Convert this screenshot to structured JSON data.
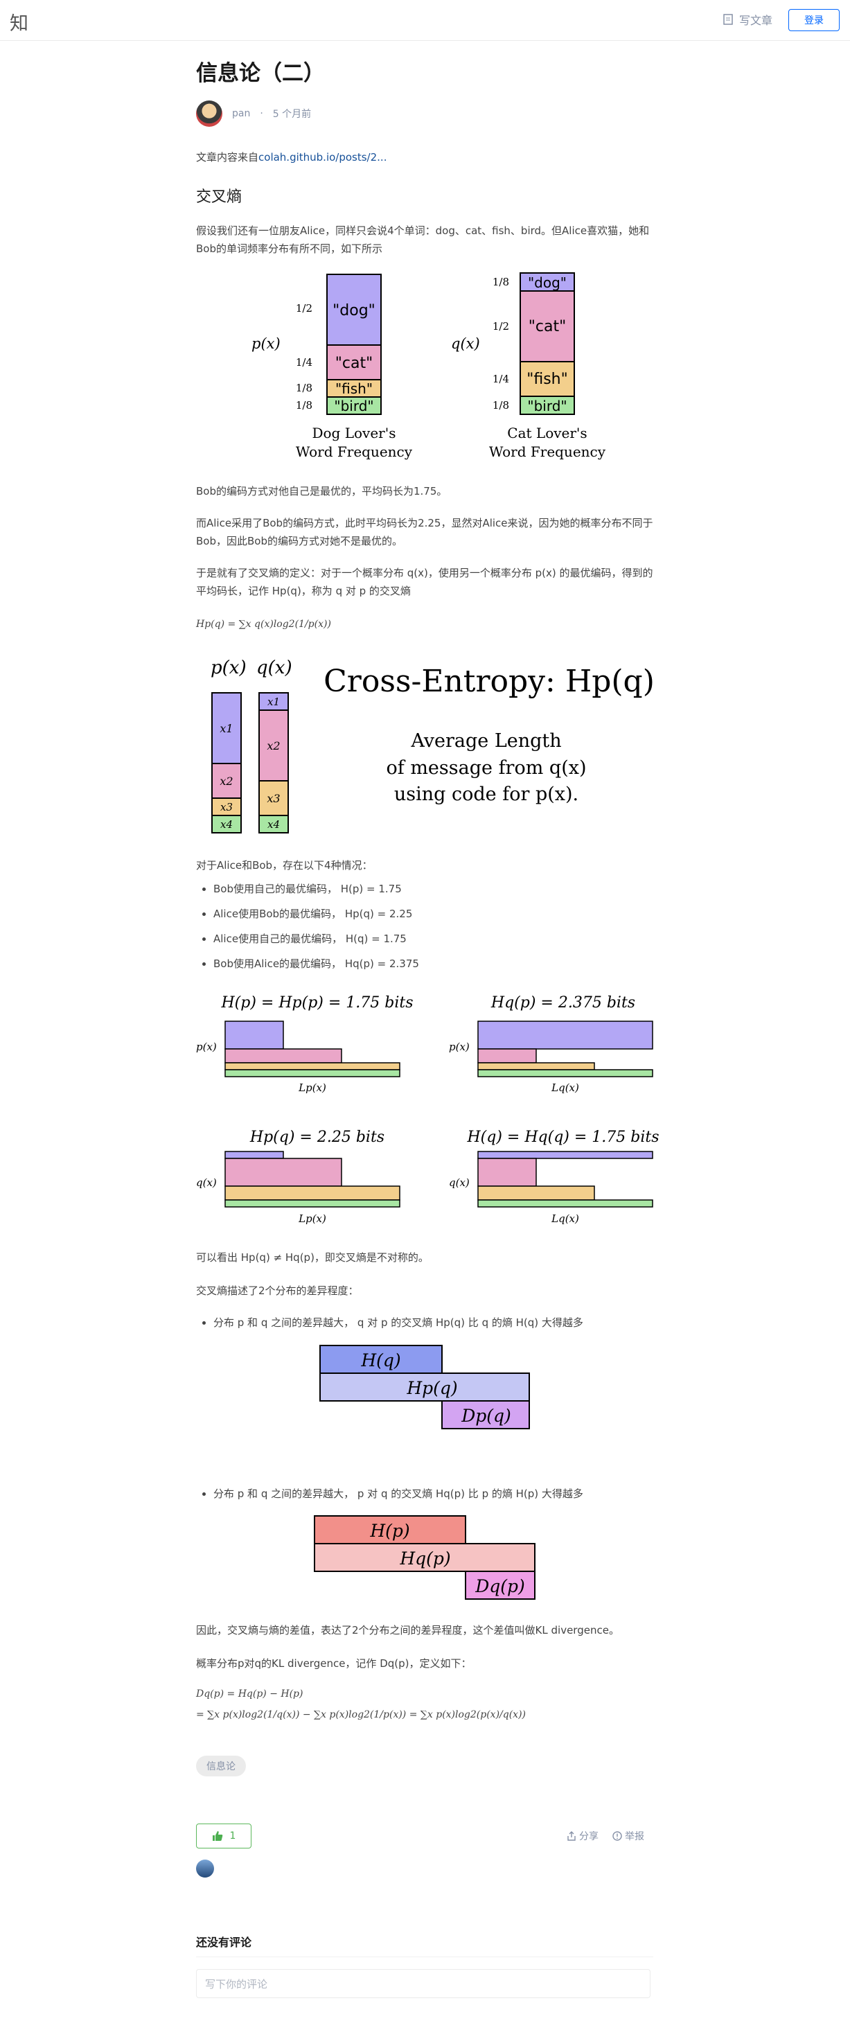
{
  "header": {
    "logo": "知",
    "write_label": "写文章",
    "login_label": "登录"
  },
  "article": {
    "title": "信息论（二）",
    "author": "pan",
    "time": "5 个月前",
    "source_prefix": "文章内容来自",
    "source_link": "colah.github.io/posts/2...",
    "section": "交叉熵",
    "p1": "假设我们还有一位朋友Alice，同样只会说4个单词：dog、cat、fish、bird。但Alice喜欢猫，她和Bob的单词频率分布有所不同，如下所示",
    "p2": "Bob的编码方式对他自己是最优的，平均码长为1.75。",
    "p3": "而Alice采用了Bob的编码方式，此时平均码长为2.25，显然对Alice来说，因为她的概率分布不同于Bob，因此Bob的编码方式对她不是最优的。",
    "p4": "于是就有了交叉熵的定义：对于一个概率分布 q(x)，使用另一个概率分布 p(x) 的最优编码，得到的平均码长，记作 Hp(q)，称为 q 对 p 的交叉熵",
    "formula1": "Hp(q) = ∑x q(x)log2(1/p(x))",
    "p5": "对于Alice和Bob，存在以下4种情况：",
    "cases": [
      "Bob使用自己的最优编码， H(p) = 1.75",
      "Alice使用Bob的最优编码， Hp(q) = 2.25",
      "Alice使用自己的最优编码， H(q) = 1.75",
      "Bob使用Alice的最优编码， Hq(p) = 2.375"
    ],
    "p6": "可以看出 Hp(q) ≠ Hq(p)，即交叉熵是不对称的。",
    "p7": "交叉熵描述了2个分布的差异程度：",
    "bullet_a": "分布 p 和 q 之间的差异越大， q 对 p 的交叉熵 Hp(q) 比 q 的熵 H(q) 大得越多",
    "bullet_b": "分布 p 和 q 之间的差异越大， p 对 q 的交叉熵 Hq(p) 比 p 的熵 H(p) 大得越多",
    "p8": "因此，交叉熵与熵的差值，表达了2个分布之间的差异程度，这个差值叫做KL divergence。",
    "p9": "概率分布p对q的KL divergence，记作 Dq(p)，定义如下：",
    "formula2a": "Dq(p) = Hq(p) − H(p)",
    "formula2b": "= ∑x p(x)log2(1/q(x)) − ∑x p(x)log2(1/p(x)) = ∑x p(x)log2(p(x)/q(x))",
    "tag": "信息论"
  },
  "fig1": {
    "p_label": "p(x)",
    "q_label": "q(x)",
    "words": [
      "\"dog\"",
      "\"cat\"",
      "\"fish\"",
      "\"bird\""
    ],
    "p_probs": [
      "1/2",
      "1/4",
      "1/8",
      "1/8"
    ],
    "q_probs": [
      "1/8",
      "1/2",
      "1/4",
      "1/8"
    ],
    "p_caption1": "Dog Lover's",
    "p_caption2": "Word Frequency",
    "q_caption1": "Cat Lover's",
    "q_caption2": "Word Frequency"
  },
  "fig2": {
    "px": "p(x)",
    "qx": "q(x)",
    "p_cells": [
      "x1",
      "x2",
      "x3",
      "x4"
    ],
    "title": "Cross-Entropy: Hp(q)",
    "sub1": "Average Length",
    "sub2": "of message from q(x)",
    "sub3": "using code for p(x)."
  },
  "fig3": {
    "t1": "H(p) = Hp(p) = 1.75 bits",
    "t2": "Hq(p) = 2.375 bits",
    "t3": "Hp(q) = 2.25 bits",
    "t4": "H(q) = Hq(q) = 1.75 bits",
    "px": "p(x)",
    "qx": "q(x)",
    "lp": "Lp(x)",
    "lq": "Lq(x)"
  },
  "fig4": {
    "hq": "H(q)",
    "hpq": "Hp(q)",
    "dpq": "Dp(q)"
  },
  "fig5": {
    "hp": "H(p)",
    "hqp": "Hq(p)",
    "dqp": "Dq(p)"
  },
  "footer": {
    "likes": "1",
    "share": "分享",
    "report": "举报",
    "comments_title": "还没有评论",
    "comment_placeholder": "写下你的评论"
  },
  "colors": {
    "purple": "#b3a7f5",
    "pink": "#eaa6c8",
    "orange": "#f3cf8c",
    "green": "#a8e6a3",
    "blue": "#8c9bf0",
    "lightblue": "#c4c7f4",
    "violet": "#d3a4f2",
    "red": "#f2908a",
    "lightred": "#f6c3c3",
    "magenta": "#ee9fe6"
  }
}
